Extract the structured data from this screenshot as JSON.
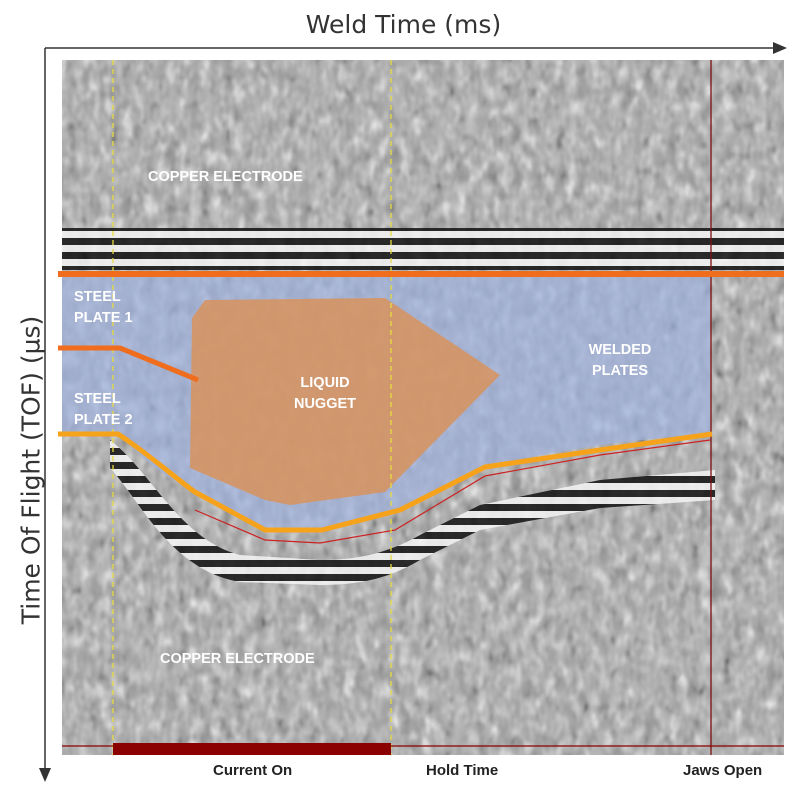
{
  "axes": {
    "x_title": "Weld Time (ms)",
    "y_title": "Time Of Flight (TOF) (µs)"
  },
  "regions": {
    "top_electrode": "COPPER ELECTRODE",
    "steel_plate_1": "STEEL PLATE 1",
    "steel_plate_2": "STEEL PLATE 2",
    "liquid_nugget": "LIQUID NUGGET",
    "welded_plates": "WELDED PLATES",
    "bottom_electrode": "COPPER ELECTRODE"
  },
  "phases": {
    "current_on": "Current On",
    "hold_time": "Hold Time",
    "jaws_open": "Jaws Open"
  },
  "colors": {
    "interface_line": "#ef6d1d",
    "plate2_line": "#f7a21b",
    "steel_overlay": "#9fb2df",
    "nugget_overlay": "#d8935d",
    "current_bar": "#8b0000",
    "phase_marker": "#e8dc3c",
    "jaws_marker": "#7a1010"
  }
}
